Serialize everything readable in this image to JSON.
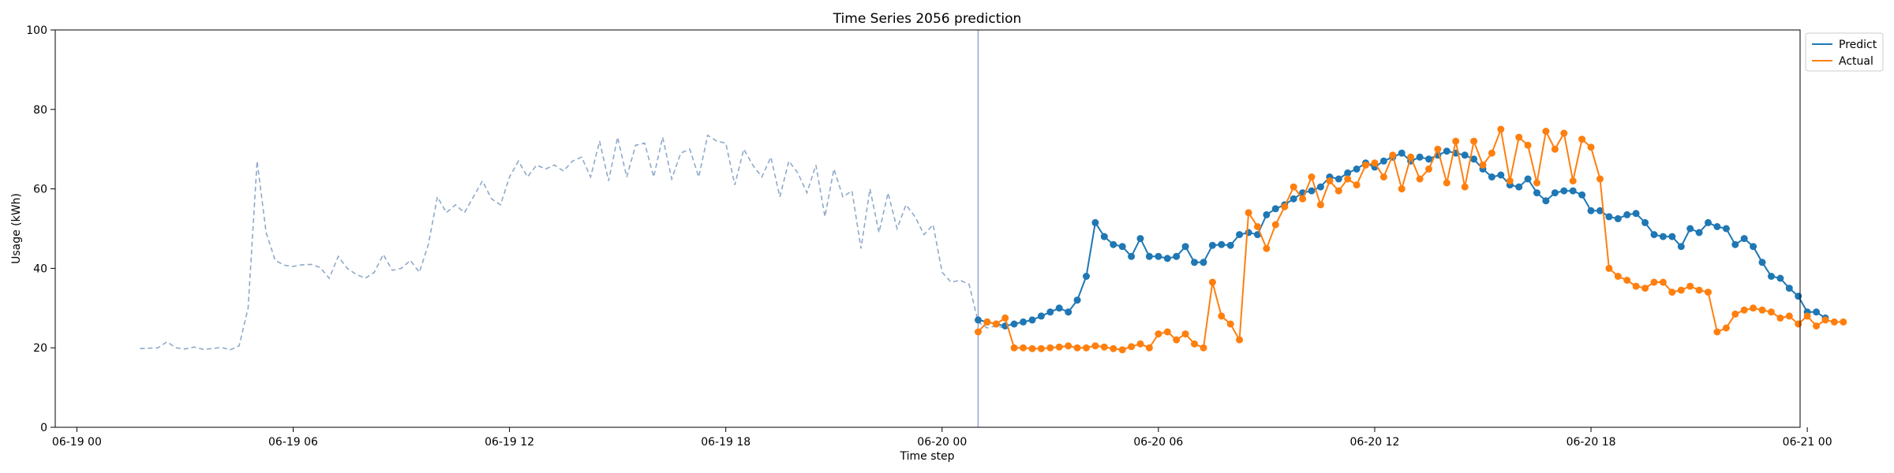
{
  "chart_data": {
    "type": "line",
    "title": "Time Series 2056 prediction",
    "xlabel": "Time step",
    "ylabel": "Usage (kWh)",
    "ylim": [
      0,
      100
    ],
    "yticks": [
      0,
      20,
      40,
      60,
      80,
      100
    ],
    "xlim": [
      -0.6,
      47.8
    ],
    "xticks": [
      {
        "label": "06-19 00",
        "hour": 0
      },
      {
        "label": "06-19 06",
        "hour": 6
      },
      {
        "label": "06-19 12",
        "hour": 12
      },
      {
        "label": "06-19 18",
        "hour": 18
      },
      {
        "label": "06-20 00",
        "hour": 24
      },
      {
        "label": "06-20 06",
        "hour": 30
      },
      {
        "label": "06-20 12",
        "hour": 36
      },
      {
        "label": "06-20 18",
        "hour": 42
      },
      {
        "label": "06-21 00",
        "hour": 48
      }
    ],
    "forecast_start_hour": 25.0,
    "grid": false,
    "legend_position": "outside-top-right",
    "history": {
      "start_hour": 1.75,
      "step_hours": 0.25,
      "color": "#8fa9c8",
      "values": [
        19.8,
        19.9,
        20.0,
        21.5,
        20.0,
        19.7,
        20.2,
        19.6,
        19.8,
        20.1,
        19.5,
        20.5,
        30.0,
        67.0,
        49.0,
        42.0,
        40.8,
        40.5,
        40.9,
        41.0,
        40.2,
        37.5,
        43.0,
        40.0,
        38.5,
        37.5,
        39.0,
        43.5,
        39.5,
        40.0,
        42.0,
        39.0,
        46.0,
        58.0,
        54.0,
        56.0,
        54.0,
        58.0,
        62.0,
        57.5,
        56.0,
        63.0,
        67.0,
        63.0,
        66.0,
        65.0,
        66.0,
        64.5,
        67.0,
        68.0,
        63.0,
        72.0,
        62.0,
        73.0,
        63.0,
        71.0,
        71.5,
        63.0,
        73.0,
        62.5,
        69.0,
        70.0,
        63.0,
        73.5,
        72.0,
        71.5,
        61.0,
        70.0,
        66.0,
        63.0,
        68.0,
        58.0,
        67.0,
        64.0,
        59.0,
        66.0,
        53.0,
        65.0,
        58.0,
        59.5,
        45.0,
        60.0,
        49.0,
        59.0,
        50.0,
        56.0,
        53.0,
        48.5,
        51.0,
        39.0,
        36.5,
        37.0,
        36.0,
        26.5,
        25.0,
        25.5,
        25.0
      ]
    },
    "series": [
      {
        "name": "Predict",
        "color": "#1f77b4",
        "start_hour": 25.0,
        "step_hours": 0.25,
        "values": [
          27.0,
          26.5,
          26.0,
          25.5,
          26.0,
          26.5,
          27.0,
          28.0,
          29.0,
          30.0,
          29.0,
          32.0,
          38.0,
          51.5,
          48.0,
          46.0,
          45.5,
          43.0,
          47.5,
          43.0,
          43.0,
          42.5,
          43.0,
          45.5,
          41.5,
          41.5,
          45.8,
          46.0,
          45.8,
          48.5,
          49.0,
          48.5,
          53.5,
          55.0,
          56.0,
          57.5,
          59.0,
          59.5,
          60.5,
          63.0,
          62.5,
          64.0,
          65.0,
          66.5,
          65.5,
          67.0,
          68.0,
          69.0,
          67.0,
          68.0,
          67.5,
          68.5,
          69.5,
          69.0,
          68.5,
          67.5,
          65.0,
          63.0,
          63.5,
          61.0,
          60.5,
          62.5,
          59.0,
          57.0,
          59.0,
          59.5,
          59.5,
          58.5,
          54.5,
          54.5,
          53.0,
          52.5,
          53.5,
          53.8,
          51.5,
          48.5,
          48.0,
          48.0,
          45.5,
          50.0,
          49.0,
          51.5,
          50.5,
          50.0,
          46.0,
          47.5,
          45.5,
          41.5,
          38.0,
          37.5,
          35.0,
          33.0,
          29.0,
          29.0,
          27.5
        ]
      },
      {
        "name": "Actual",
        "color": "#ff7f0e",
        "start_hour": 25.0,
        "step_hours": 0.25,
        "values": [
          24.0,
          26.5,
          26.0,
          27.5,
          20.0,
          20.0,
          19.8,
          19.8,
          20.0,
          20.2,
          20.5,
          20.0,
          20.0,
          20.5,
          20.2,
          19.8,
          19.5,
          20.3,
          21.0,
          20.0,
          23.5,
          24.0,
          22.0,
          23.5,
          21.0,
          20.0,
          36.5,
          28.0,
          26.0,
          22.0,
          54.0,
          50.5,
          45.0,
          51.0,
          55.5,
          60.5,
          57.5,
          63.0,
          56.0,
          62.0,
          59.5,
          62.5,
          61.0,
          66.0,
          66.5,
          63.0,
          68.5,
          60.0,
          68.0,
          62.5,
          65.0,
          70.0,
          61.5,
          72.0,
          60.5,
          72.0,
          66.0,
          69.0,
          75.0,
          62.0,
          73.0,
          71.0,
          61.5,
          74.5,
          70.0,
          74.0,
          62.0,
          72.5,
          70.5,
          62.5,
          40.0,
          38.0,
          37.0,
          35.5,
          35.0,
          36.5,
          36.5,
          34.0,
          34.5,
          35.5,
          34.5,
          34.0,
          24.0,
          25.0,
          28.5,
          29.5,
          30.0,
          29.5,
          29.0,
          27.5,
          28.0,
          26.0,
          28.0,
          25.5,
          27.0,
          26.5,
          26.5
        ]
      }
    ]
  }
}
